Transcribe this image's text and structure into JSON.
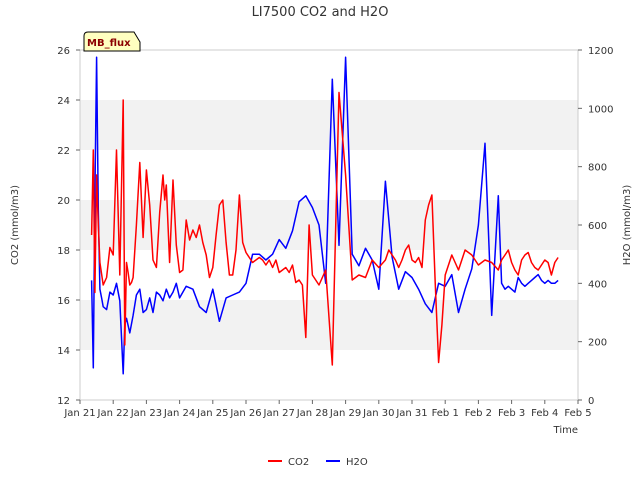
{
  "chart_data": {
    "type": "line",
    "title": "LI7500 CO2 and H2O",
    "xlabel": "Time",
    "ylabel": "CO2 (mmol/m3)",
    "y2label": "H2O (mmol/m3)",
    "badge": "MB_flux",
    "x_ticks": [
      "Jan 21",
      "Jan 22",
      "Jan 23",
      "Jan 24",
      "Jan 25",
      "Jan 26",
      "Jan 27",
      "Jan 28",
      "Jan 29",
      "Jan 30",
      "Jan 31",
      "Feb 1",
      "Feb 2",
      "Feb 3",
      "Feb 4",
      "Feb 5"
    ],
    "xlim": [
      0,
      15
    ],
    "ylim": [
      12,
      26
    ],
    "y_ticks": [
      12,
      14,
      16,
      18,
      20,
      22,
      24,
      26
    ],
    "y2lim": [
      0,
      1200
    ],
    "y2_ticks": [
      0,
      200,
      400,
      600,
      800,
      1000,
      1200
    ],
    "grid": "horizontal bands",
    "legend_position": "bottom-center",
    "colors": {
      "CO2": "#ff0000",
      "H2O": "#0000ff",
      "band": "#f2f2f2",
      "badge_bg": "#ffffc0",
      "badge_text": "#8b0000"
    },
    "series": [
      {
        "name": "CO2",
        "axis": "left",
        "x": [
          0.35,
          0.4,
          0.45,
          0.5,
          0.55,
          0.6,
          0.7,
          0.8,
          0.9,
          1.0,
          1.1,
          1.2,
          1.3,
          1.35,
          1.4,
          1.45,
          1.5,
          1.55,
          1.6,
          1.7,
          1.8,
          1.9,
          2.0,
          2.1,
          2.2,
          2.3,
          2.4,
          2.5,
          2.55,
          2.6,
          2.7,
          2.8,
          2.9,
          3.0,
          3.1,
          3.2,
          3.3,
          3.4,
          3.5,
          3.6,
          3.7,
          3.8,
          3.9,
          4.0,
          4.1,
          4.2,
          4.3,
          4.4,
          4.5,
          4.6,
          4.7,
          4.8,
          4.9,
          5.0,
          5.2,
          5.4,
          5.5,
          5.6,
          5.7,
          5.8,
          5.9,
          6.0,
          6.1,
          6.2,
          6.3,
          6.4,
          6.5,
          6.6,
          6.7,
          6.8,
          6.9,
          7.0,
          7.2,
          7.4,
          7.6,
          7.8,
          8.0,
          8.2,
          8.4,
          8.6,
          8.8,
          9.0,
          9.2,
          9.3,
          9.4,
          9.5,
          9.6,
          9.7,
          9.8,
          9.9,
          10.0,
          10.1,
          10.2,
          10.3,
          10.4,
          10.5,
          10.6,
          10.7,
          10.8,
          10.9,
          11.0,
          11.2,
          11.4,
          11.6,
          11.8,
          12.0,
          12.2,
          12.4,
          12.6,
          12.7,
          12.8,
          12.9,
          13.0,
          13.1,
          13.2,
          13.3,
          13.4,
          13.5,
          13.6,
          13.7,
          13.8,
          13.9,
          14.0,
          14.1,
          14.2,
          14.3,
          14.4
        ],
        "values": [
          18.6,
          22.0,
          16.3,
          21.0,
          19.0,
          17.5,
          16.6,
          16.9,
          18.1,
          17.8,
          22.0,
          17.0,
          24.0,
          14.2,
          17.5,
          17.1,
          16.6,
          16.7,
          16.9,
          19.0,
          21.5,
          18.5,
          21.2,
          19.8,
          17.6,
          17.3,
          19.5,
          21.0,
          20.0,
          20.6,
          17.5,
          20.8,
          18.2,
          17.1,
          17.2,
          19.2,
          18.4,
          18.8,
          18.5,
          19.0,
          18.3,
          17.8,
          16.9,
          17.3,
          18.6,
          19.8,
          20.0,
          18.3,
          17.0,
          17.0,
          18.0,
          20.2,
          18.3,
          17.9,
          17.5,
          17.7,
          17.6,
          17.4,
          17.6,
          17.3,
          17.6,
          17.1,
          17.2,
          17.3,
          17.1,
          17.4,
          16.7,
          16.8,
          16.6,
          14.5,
          19.0,
          17.0,
          16.6,
          17.2,
          13.4,
          24.3,
          21.0,
          16.8,
          17.0,
          16.9,
          17.6,
          17.3,
          17.6,
          18.0,
          17.8,
          17.6,
          17.3,
          17.6,
          18.0,
          18.2,
          17.6,
          17.5,
          17.7,
          17.3,
          19.2,
          19.8,
          20.2,
          16.7,
          13.5,
          15.0,
          17.0,
          17.8,
          17.2,
          18.0,
          17.8,
          17.4,
          17.6,
          17.5,
          17.2,
          17.6,
          17.8,
          18.0,
          17.5,
          17.2,
          17.0,
          17.6,
          17.8,
          17.9,
          17.5,
          17.3,
          17.2,
          17.4,
          17.6,
          17.5,
          17.0,
          17.5,
          17.7
        ]
      },
      {
        "name": "H2O",
        "axis": "right",
        "x": [
          0.35,
          0.4,
          0.45,
          0.5,
          0.55,
          0.6,
          0.65,
          0.7,
          0.8,
          0.9,
          1.0,
          1.1,
          1.2,
          1.3,
          1.35,
          1.4,
          1.5,
          1.6,
          1.7,
          1.8,
          1.9,
          2.0,
          2.1,
          2.2,
          2.3,
          2.4,
          2.5,
          2.6,
          2.7,
          2.8,
          2.9,
          3.0,
          3.2,
          3.4,
          3.6,
          3.8,
          4.0,
          4.2,
          4.4,
          4.6,
          4.8,
          5.0,
          5.2,
          5.4,
          5.6,
          5.8,
          6.0,
          6.2,
          6.4,
          6.6,
          6.8,
          7.0,
          7.2,
          7.4,
          7.6,
          7.8,
          8.0,
          8.2,
          8.4,
          8.6,
          8.8,
          9.0,
          9.2,
          9.4,
          9.6,
          9.8,
          10.0,
          10.2,
          10.4,
          10.6,
          10.8,
          11.0,
          11.2,
          11.4,
          11.6,
          11.8,
          12.0,
          12.2,
          12.4,
          12.6,
          12.7,
          12.8,
          12.9,
          13.0,
          13.1,
          13.2,
          13.3,
          13.4,
          13.5,
          13.6,
          13.7,
          13.8,
          13.9,
          14.0,
          14.1,
          14.2,
          14.3,
          14.4
        ],
        "values": [
          410,
          110,
          700,
          1175,
          650,
          380,
          350,
          320,
          310,
          370,
          360,
          400,
          340,
          90,
          260,
          280,
          230,
          290,
          360,
          380,
          300,
          310,
          350,
          300,
          370,
          360,
          340,
          380,
          350,
          370,
          400,
          350,
          390,
          380,
          320,
          300,
          380,
          270,
          350,
          360,
          370,
          400,
          500,
          500,
          480,
          500,
          550,
          520,
          580,
          680,
          700,
          660,
          600,
          400,
          1100,
          530,
          1175,
          500,
          460,
          520,
          480,
          380,
          750,
          490,
          380,
          440,
          420,
          380,
          330,
          300,
          400,
          390,
          430,
          300,
          380,
          450,
          600,
          880,
          290,
          700,
          400,
          380,
          390,
          380,
          370,
          420,
          400,
          390,
          400,
          410,
          420,
          430,
          410,
          400,
          410,
          400,
          400,
          410
        ]
      }
    ]
  }
}
